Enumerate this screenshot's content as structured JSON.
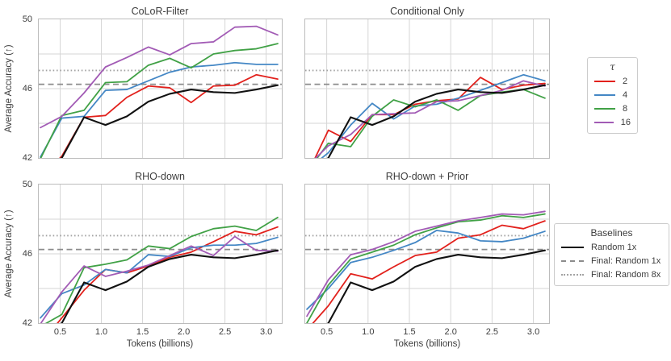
{
  "figure": {
    "ylabel": "Average Accuracy (↑)",
    "xlabel": "Tokens (billions)",
    "xlim": [
      0.24,
      3.19
    ],
    "ylim": [
      42,
      50
    ],
    "x_values": [
      0.26,
      0.52,
      0.79,
      1.05,
      1.31,
      1.57,
      1.83,
      2.09,
      2.36,
      2.62,
      2.88,
      3.14
    ],
    "x_ticks": [
      {
        "v": 0.5,
        "label": "0.5"
      },
      {
        "v": 1.0,
        "label": "1.0"
      },
      {
        "v": 1.5,
        "label": "1.5"
      },
      {
        "v": 2.0,
        "label": "2.0"
      },
      {
        "v": 2.5,
        "label": "2.5"
      },
      {
        "v": 3.0,
        "label": "3.0"
      }
    ],
    "y_ticks": [
      {
        "v": 42,
        "label": "42"
      },
      {
        "v": 46,
        "label": "46"
      },
      {
        "v": 50,
        "label": "50"
      }
    ],
    "grid_y": [
      44,
      46,
      48
    ],
    "baseline_dashed_value": 46.25,
    "baseline_dotted_value": 47.05,
    "colors": {
      "tau2_red": "#e2211c",
      "tau4_blue": "#4487c5",
      "tau8_green": "#41a146",
      "tau16_purple": "#a25bb5",
      "random1x_black": "#111111",
      "dashed_gray": "#8c8c8c",
      "dotted_gray": "#a3a3a3",
      "grid_gray": "#d6d6d6",
      "spine_gray": "#bcbcbc"
    }
  },
  "chart_data": [
    {
      "type": "line",
      "title": "CoLoR-Filter",
      "xlabel": "Tokens (billions)",
      "ylabel": "Average Accuracy (↑)",
      "series": [
        {
          "name": "2",
          "color": "#e2211c",
          "values": [
            40.9,
            42.1,
            44.35,
            44.45,
            45.5,
            46.15,
            46.05,
            45.2,
            46.15,
            46.2,
            46.8,
            46.55
          ]
        },
        {
          "name": "4",
          "color": "#4487c5",
          "values": [
            42.05,
            44.3,
            44.4,
            45.9,
            45.95,
            46.45,
            46.95,
            47.25,
            47.35,
            47.5,
            47.4,
            47.4
          ]
        },
        {
          "name": "8",
          "color": "#41a146",
          "values": [
            41.95,
            44.45,
            44.75,
            46.35,
            46.4,
            47.35,
            47.75,
            47.2,
            48.0,
            48.2,
            48.3,
            48.6
          ]
        },
        {
          "name": "16",
          "color": "#a25bb5",
          "values": [
            43.75,
            44.4,
            45.75,
            47.25,
            47.8,
            48.4,
            47.95,
            48.6,
            48.7,
            49.55,
            49.6,
            49.1
          ]
        },
        {
          "name": "Random 1x",
          "color": "#111111",
          "values": [
            41.2,
            42.0,
            44.35,
            43.9,
            44.4,
            45.25,
            45.7,
            45.95,
            45.8,
            45.75,
            45.95,
            46.2
          ]
        }
      ]
    },
    {
      "type": "line",
      "title": "Conditional Only",
      "xlabel": "Tokens (billions)",
      "ylabel": "Average Accuracy (↑)",
      "series": [
        {
          "name": "2",
          "color": "#e2211c",
          "values": [
            41.0,
            43.6,
            42.95,
            44.5,
            44.5,
            45.1,
            45.3,
            45.4,
            46.65,
            45.95,
            46.2,
            46.3
          ]
        },
        {
          "name": "4",
          "color": "#4487c5",
          "values": [
            41.3,
            42.3,
            43.9,
            45.15,
            44.25,
            45.0,
            45.1,
            45.45,
            45.9,
            46.35,
            46.8,
            46.45
          ]
        },
        {
          "name": "8",
          "color": "#41a146",
          "values": [
            41.2,
            42.85,
            42.65,
            44.4,
            45.35,
            44.95,
            45.35,
            44.75,
            45.6,
            45.8,
            45.95,
            45.45
          ]
        },
        {
          "name": "16",
          "color": "#a25bb5",
          "values": [
            41.5,
            42.7,
            43.35,
            44.5,
            44.55,
            44.6,
            45.25,
            45.3,
            45.6,
            45.9,
            46.45,
            46.15
          ]
        },
        {
          "name": "Random 1x",
          "color": "#111111",
          "values": [
            41.2,
            42.0,
            44.35,
            43.9,
            44.4,
            45.25,
            45.7,
            45.95,
            45.8,
            45.75,
            45.95,
            46.2
          ]
        }
      ]
    },
    {
      "type": "line",
      "title": "RHO-down",
      "xlabel": "Tokens (billions)",
      "ylabel": "Average Accuracy (↑)",
      "series": [
        {
          "name": "2",
          "color": "#e2211c",
          "values": [
            40.8,
            42.3,
            43.9,
            45.1,
            44.9,
            45.3,
            45.8,
            46.1,
            46.7,
            47.3,
            47.1,
            47.55
          ]
        },
        {
          "name": "4",
          "color": "#4487c5",
          "values": [
            42.3,
            43.7,
            44.2,
            45.1,
            44.9,
            45.95,
            45.85,
            46.35,
            46.5,
            46.5,
            46.6,
            46.95
          ]
        },
        {
          "name": "8",
          "color": "#41a146",
          "values": [
            41.8,
            42.5,
            45.2,
            45.4,
            45.65,
            46.45,
            46.3,
            47.0,
            47.45,
            47.6,
            47.35,
            48.1
          ]
        },
        {
          "name": "16",
          "color": "#a25bb5",
          "values": [
            41.95,
            43.8,
            45.3,
            44.7,
            45.0,
            45.35,
            45.9,
            46.45,
            45.9,
            47.0,
            46.2,
            46.15
          ]
        },
        {
          "name": "Random 1x",
          "color": "#111111",
          "values": [
            41.2,
            42.0,
            44.35,
            43.9,
            44.4,
            45.25,
            45.7,
            45.95,
            45.8,
            45.75,
            45.95,
            46.2
          ]
        }
      ]
    },
    {
      "type": "line",
      "title": "RHO-down + Prior",
      "xlabel": "Tokens (billions)",
      "ylabel": "Average Accuracy (↑)",
      "series": [
        {
          "name": "2",
          "color": "#e2211c",
          "values": [
            41.6,
            43.0,
            44.85,
            44.55,
            45.25,
            45.9,
            46.1,
            46.9,
            47.1,
            47.65,
            47.45,
            47.9
          ]
        },
        {
          "name": "4",
          "color": "#4487c5",
          "values": [
            42.8,
            44.0,
            45.5,
            45.8,
            46.2,
            46.65,
            47.35,
            47.2,
            46.75,
            46.7,
            46.9,
            47.3
          ]
        },
        {
          "name": "8",
          "color": "#41a146",
          "values": [
            42.0,
            44.2,
            45.7,
            46.1,
            46.5,
            47.1,
            47.5,
            47.85,
            47.95,
            48.2,
            48.1,
            48.3
          ]
        },
        {
          "name": "16",
          "color": "#a25bb5",
          "values": [
            42.4,
            44.5,
            45.95,
            46.25,
            46.7,
            47.3,
            47.6,
            47.9,
            48.1,
            48.3,
            48.25,
            48.45
          ]
        },
        {
          "name": "Random 1x",
          "color": "#111111",
          "values": [
            41.2,
            42.0,
            44.35,
            43.9,
            44.4,
            45.25,
            45.7,
            45.95,
            45.8,
            45.75,
            45.95,
            46.2
          ]
        }
      ]
    }
  ],
  "legends": {
    "tau": {
      "title": "τ",
      "items": [
        {
          "label": "2",
          "color": "#e2211c"
        },
        {
          "label": "4",
          "color": "#4487c5"
        },
        {
          "label": "8",
          "color": "#41a146"
        },
        {
          "label": "16",
          "color": "#a25bb5"
        }
      ]
    },
    "baselines": {
      "title": "Baselines",
      "items": [
        {
          "label": "Random 1x",
          "style": "solid",
          "color": "#111111"
        },
        {
          "label": "Final: Random 1x",
          "style": "dashed",
          "color": "#8c8c8c"
        },
        {
          "label": "Final: Random 8x",
          "style": "dotted",
          "color": "#a3a3a3"
        }
      ]
    }
  }
}
